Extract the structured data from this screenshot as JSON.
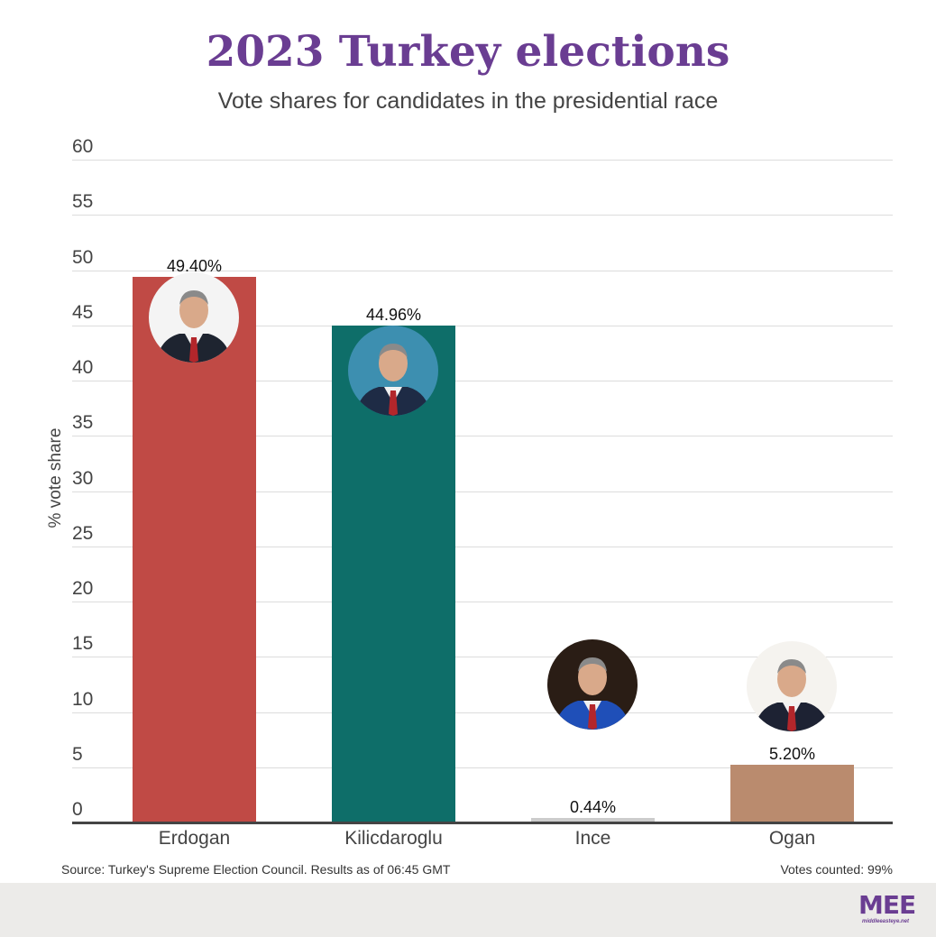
{
  "header": {
    "title": "2023 Turkey elections",
    "subtitle": "Vote shares for candidates in the presidential race"
  },
  "chart_data": {
    "type": "bar",
    "title": "2023 Turkey elections",
    "subtitle": "Vote shares for candidates in the presidential race",
    "xlabel": "",
    "ylabel": "% vote share",
    "ylim": [
      0,
      60
    ],
    "yticks": [
      "0",
      "5",
      "10",
      "15",
      "20",
      "25",
      "30",
      "35",
      "40",
      "45",
      "50",
      "55",
      "60"
    ],
    "grid": true,
    "legend": "none",
    "categories": [
      "Erdogan",
      "Kilicdaroglu",
      "Ince",
      "Ogan"
    ],
    "values": [
      49.4,
      44.96,
      0.44,
      5.2
    ],
    "data_labels": [
      "49.40%",
      "44.96%",
      "0.44%",
      "5.20%"
    ],
    "colors": [
      "#c04a45",
      "#0e6e69",
      "#cccccc",
      "#ba8b6e"
    ]
  },
  "footer": {
    "source": "Source: Turkey's Supreme Election Council. Results as of 06:45 GMT",
    "votes_counted": "Votes counted: 99%",
    "logo_mark": "MEE",
    "logo_url": "middleeasteye.net"
  },
  "colors": {
    "title": "#6a3d92",
    "footer_bg": "#ecebe9",
    "gridline": "#dcdcdc",
    "axis": "#444444"
  }
}
